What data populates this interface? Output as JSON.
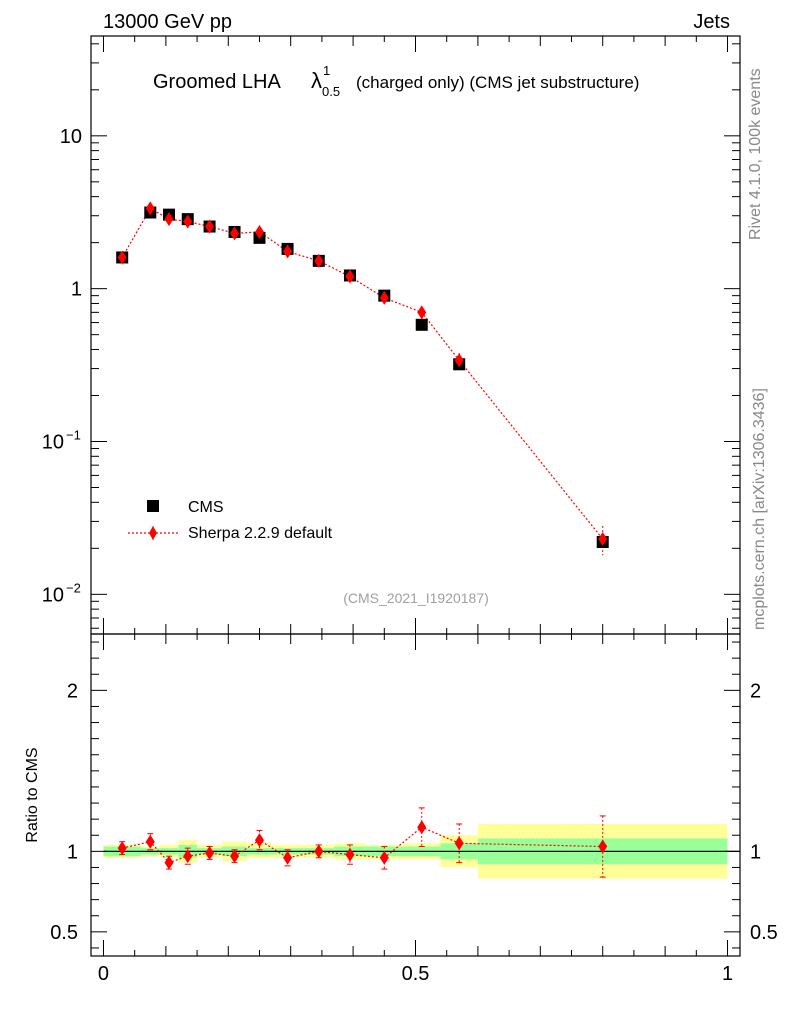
{
  "header": {
    "left": "13000 GeV pp",
    "right": "Jets"
  },
  "title": {
    "main": "Groomed LHA",
    "symbol": "λ",
    "superscript": "1",
    "subscript": "0.5",
    "detail": "(charged only) (CMS jet substructure)"
  },
  "side_labels": {
    "rivet": "Rivet 4.1.0,  100k events",
    "mcplots": "mcplots.cern.ch [arXiv:1306.3436]"
  },
  "analysis_id": "(CMS_2021_I1920187)",
  "legend": {
    "data_label": "CMS",
    "mc_label": "Sherpa 2.2.9 default"
  },
  "colors": {
    "mc": "#ff0000",
    "data": "#000000",
    "band_inner": "#99ff99",
    "band_outer": "#ffff99"
  },
  "chart_data": [
    {
      "type": "scatter",
      "panel": "main",
      "yscale": "log",
      "ylim": [
        0.0055,
        45
      ],
      "xlim": [
        -0.02,
        1.02
      ],
      "yticks": [
        {
          "value": 10,
          "label": "10"
        },
        {
          "value": 1,
          "label": "1"
        },
        {
          "value": 0.1,
          "label": "10",
          "exp": "−1"
        },
        {
          "value": 0.01,
          "label": "10",
          "exp": "−2"
        }
      ],
      "series": [
        {
          "name": "CMS",
          "x": [
            0.03,
            0.075,
            0.105,
            0.135,
            0.17,
            0.21,
            0.25,
            0.295,
            0.345,
            0.395,
            0.45,
            0.51,
            0.57,
            0.8
          ],
          "values": [
            1.6,
            3.15,
            3.05,
            2.85,
            2.55,
            2.35,
            2.15,
            1.82,
            1.52,
            1.22,
            0.9,
            0.58,
            0.32,
            0.022
          ]
        },
        {
          "name": "Sherpa 2.2.9 default",
          "x": [
            0.03,
            0.075,
            0.105,
            0.135,
            0.17,
            0.21,
            0.25,
            0.295,
            0.345,
            0.395,
            0.45,
            0.51,
            0.57,
            0.8
          ],
          "values": [
            1.6,
            3.35,
            2.85,
            2.75,
            2.55,
            2.3,
            2.35,
            1.75,
            1.52,
            1.2,
            0.87,
            0.7,
            0.34,
            0.023
          ],
          "errors": [
            0.06,
            0.15,
            0.12,
            0.12,
            0.1,
            0.1,
            0.14,
            0.1,
            0.08,
            0.08,
            0.06,
            0.07,
            0.04,
            0.005
          ]
        }
      ]
    },
    {
      "type": "scatter",
      "panel": "ratio",
      "ylabel": "Ratio to CMS",
      "ylim": [
        0.35,
        2.35
      ],
      "xlim": [
        -0.02,
        1.02
      ],
      "yticks": [
        {
          "value": 2,
          "label": "2"
        },
        {
          "value": 1,
          "label": "1"
        },
        {
          "value": 0.5,
          "label": "0.5"
        }
      ],
      "xticks": [
        {
          "value": 0,
          "label": "0"
        },
        {
          "value": 0.5,
          "label": "0.5"
        },
        {
          "value": 1,
          "label": "1"
        }
      ],
      "bands": [
        {
          "x0": 0.0,
          "x1": 0.06,
          "inner": [
            0.97,
            1.03
          ],
          "outer": [
            0.96,
            1.04
          ]
        },
        {
          "x0": 0.06,
          "x1": 0.09,
          "inner": [
            0.98,
            1.02
          ],
          "outer": [
            0.97,
            1.03
          ]
        },
        {
          "x0": 0.09,
          "x1": 0.12,
          "inner": [
            0.98,
            1.02
          ],
          "outer": [
            0.96,
            1.04
          ]
        },
        {
          "x0": 0.12,
          "x1": 0.15,
          "inner": [
            0.96,
            1.04
          ],
          "outer": [
            0.93,
            1.07
          ]
        },
        {
          "x0": 0.15,
          "x1": 0.19,
          "inner": [
            0.98,
            1.02
          ],
          "outer": [
            0.96,
            1.04
          ]
        },
        {
          "x0": 0.19,
          "x1": 0.23,
          "inner": [
            0.97,
            1.03
          ],
          "outer": [
            0.94,
            1.06
          ]
        },
        {
          "x0": 0.23,
          "x1": 0.27,
          "inner": [
            0.98,
            1.02
          ],
          "outer": [
            0.96,
            1.05
          ]
        },
        {
          "x0": 0.27,
          "x1": 0.32,
          "inner": [
            0.98,
            1.02
          ],
          "outer": [
            0.96,
            1.04
          ]
        },
        {
          "x0": 0.32,
          "x1": 0.37,
          "inner": [
            0.98,
            1.02
          ],
          "outer": [
            0.96,
            1.04
          ]
        },
        {
          "x0": 0.37,
          "x1": 0.42,
          "inner": [
            0.97,
            1.03
          ],
          "outer": [
            0.95,
            1.05
          ]
        },
        {
          "x0": 0.42,
          "x1": 0.48,
          "inner": [
            0.97,
            1.03
          ],
          "outer": [
            0.95,
            1.04
          ]
        },
        {
          "x0": 0.48,
          "x1": 0.54,
          "inner": [
            0.97,
            1.03
          ],
          "outer": [
            0.95,
            1.05
          ]
        },
        {
          "x0": 0.54,
          "x1": 0.6,
          "inner": [
            0.95,
            1.05
          ],
          "outer": [
            0.9,
            1.1
          ]
        },
        {
          "x0": 0.6,
          "x1": 1.0,
          "inner": [
            0.92,
            1.08
          ],
          "outer": [
            0.83,
            1.17
          ]
        }
      ],
      "series": [
        {
          "name": "Sherpa 2.2.9 default / CMS",
          "x": [
            0.03,
            0.075,
            0.105,
            0.135,
            0.17,
            0.21,
            0.25,
            0.295,
            0.345,
            0.395,
            0.45,
            0.51,
            0.57,
            0.8
          ],
          "values": [
            1.02,
            1.06,
            0.93,
            0.97,
            0.99,
            0.97,
            1.07,
            0.96,
            1.0,
            0.98,
            0.96,
            1.15,
            1.05,
            1.03
          ],
          "errors": [
            0.04,
            0.05,
            0.04,
            0.05,
            0.04,
            0.04,
            0.06,
            0.05,
            0.04,
            0.06,
            0.07,
            0.12,
            0.12,
            0.19
          ]
        }
      ]
    }
  ]
}
